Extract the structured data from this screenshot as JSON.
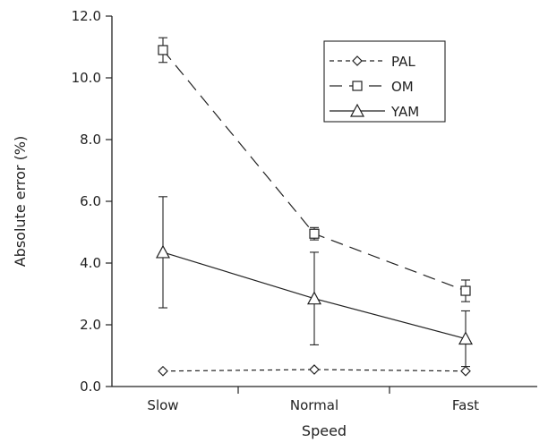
{
  "chart_data": {
    "type": "line",
    "title": "",
    "xlabel": "Speed",
    "ylabel": "Absolute error (%)",
    "categories": [
      "Slow",
      "Normal",
      "Fast"
    ],
    "ylim": [
      0,
      12
    ],
    "yticks": [
      "0.0",
      "2.0",
      "4.0",
      "6.0",
      "8.0",
      "10.0",
      "12.0"
    ],
    "grid": false,
    "legend_position": "top-right",
    "series": [
      {
        "name": "PAL",
        "marker": "diamond",
        "line_style": "dotted",
        "values": [
          0.5,
          0.55,
          0.5
        ],
        "errors": [
          0,
          0,
          0
        ]
      },
      {
        "name": "OM",
        "marker": "square",
        "line_style": "dashed",
        "values": [
          10.9,
          4.95,
          3.1
        ],
        "errors": [
          0.4,
          0.2,
          0.35
        ]
      },
      {
        "name": "YAM",
        "marker": "triangle",
        "line_style": "solid",
        "values": [
          4.35,
          2.85,
          1.55
        ],
        "errors": [
          1.8,
          1.5,
          0.9
        ]
      }
    ]
  }
}
